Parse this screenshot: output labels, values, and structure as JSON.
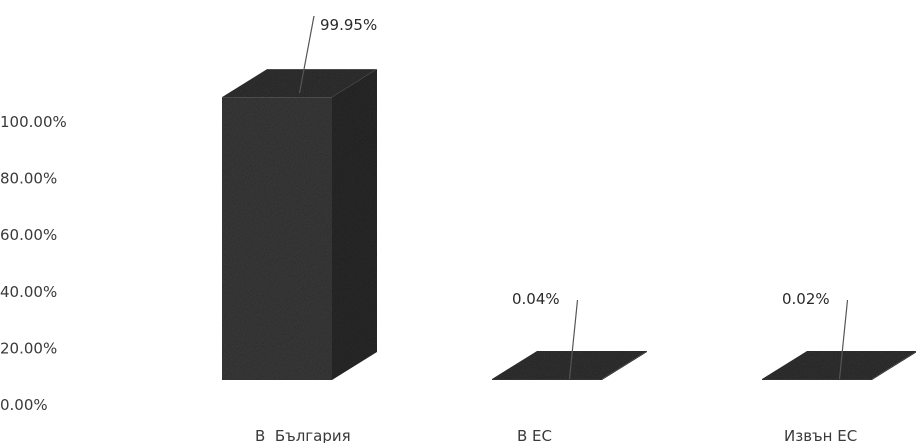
{
  "chart_data": {
    "type": "bar",
    "categories": [
      "В  България",
      "В ЕС",
      "Извън ЕС"
    ],
    "values": [
      99.95,
      0.04,
      0.02
    ],
    "data_labels": [
      "99.95%",
      "0.04%",
      "0.02%"
    ],
    "yticks": [
      "0.00%",
      "20.00%",
      "40.00%",
      "60.00%",
      "80.00%",
      "100.00%"
    ],
    "ylim": [
      0,
      100
    ],
    "grid": false,
    "style": "3d-column",
    "bar_color": "#3c3c3c"
  }
}
